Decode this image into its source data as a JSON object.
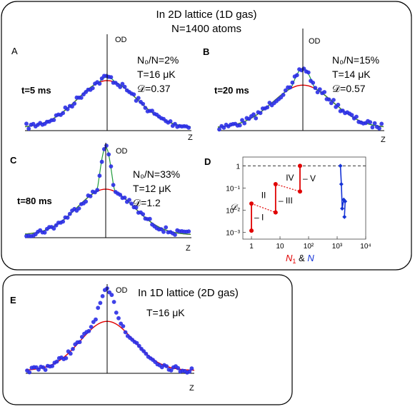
{
  "header": {
    "line1": "In 2D lattice (1D gas)",
    "line2": "N=1400 atoms"
  },
  "panel_e_title": "In 1D lattice (2D gas)",
  "colors": {
    "points": "#2a2ee6",
    "fit_thermal": "#e00000",
    "fit_bimodal": "#1f9a3a",
    "axis": "#000000"
  },
  "panels": [
    {
      "id": "A",
      "time": "t=5 ms",
      "frac": "N₀/N=2%",
      "temp": "T=16 μK",
      "d": "𝒟=0.37",
      "axis_y": "OD",
      "axis_x": "Z",
      "peak": 1.0,
      "red_amp": 0.93,
      "width": 1.0,
      "bimodal": true
    },
    {
      "id": "B",
      "time": "t=20 ms",
      "frac": "N₀/N=15%",
      "temp": "T=14 μK",
      "d": "𝒟=0.57",
      "axis_y": "OD",
      "axis_x": "Z",
      "peak": 1.0,
      "red_amp": 0.72,
      "width": 0.75,
      "bimodal": true
    },
    {
      "id": "C",
      "time": "t=80 ms",
      "frac": "N₀/N=33%",
      "temp": "T=12 μK",
      "d": "𝒟=1.2",
      "axis_y": "OD",
      "axis_x": "Z",
      "peak": 1.0,
      "red_amp": 0.52,
      "width": 0.45,
      "bimodal": true
    },
    {
      "id": "E",
      "time": "",
      "frac": "",
      "temp": "T=16 μK",
      "d": "",
      "axis_y": "OD",
      "axis_x": "Z",
      "peak": 1.0,
      "red_amp": 0.62,
      "width": 0.55,
      "bimodal": false
    }
  ],
  "chart_data": {
    "type": "scatter",
    "panel": "D",
    "ylabel": "𝒟",
    "xlabel_parts": [
      "N",
      "1",
      " & ",
      "N"
    ],
    "x_log": true,
    "y_log": true,
    "xlim": [
      0.5,
      10000
    ],
    "ylim": [
      0.0005,
      2.5
    ],
    "x_ticks": [
      "1",
      "10",
      "10²",
      "10³",
      "10⁴"
    ],
    "y_ticks": [
      "1",
      "10⁻¹",
      "10⁻²",
      "10⁻³"
    ],
    "reference_line": 1,
    "region_labels": [
      "I",
      "II",
      "III",
      "IV",
      "V"
    ],
    "series": [
      {
        "color": "#e00000",
        "points": [
          [
            1,
            0.0012
          ],
          [
            1,
            0.02
          ],
          [
            7,
            0.008
          ],
          [
            7,
            0.15
          ],
          [
            50,
            0.07
          ],
          [
            50,
            1.0
          ]
        ]
      },
      {
        "color": "#1533d6",
        "points": [
          [
            1300,
            1.0
          ],
          [
            1400,
            0.15
          ],
          [
            1500,
            0.012
          ],
          [
            1700,
            0.03
          ],
          [
            1900,
            0.025
          ],
          [
            1800,
            0.005
          ]
        ]
      }
    ]
  }
}
